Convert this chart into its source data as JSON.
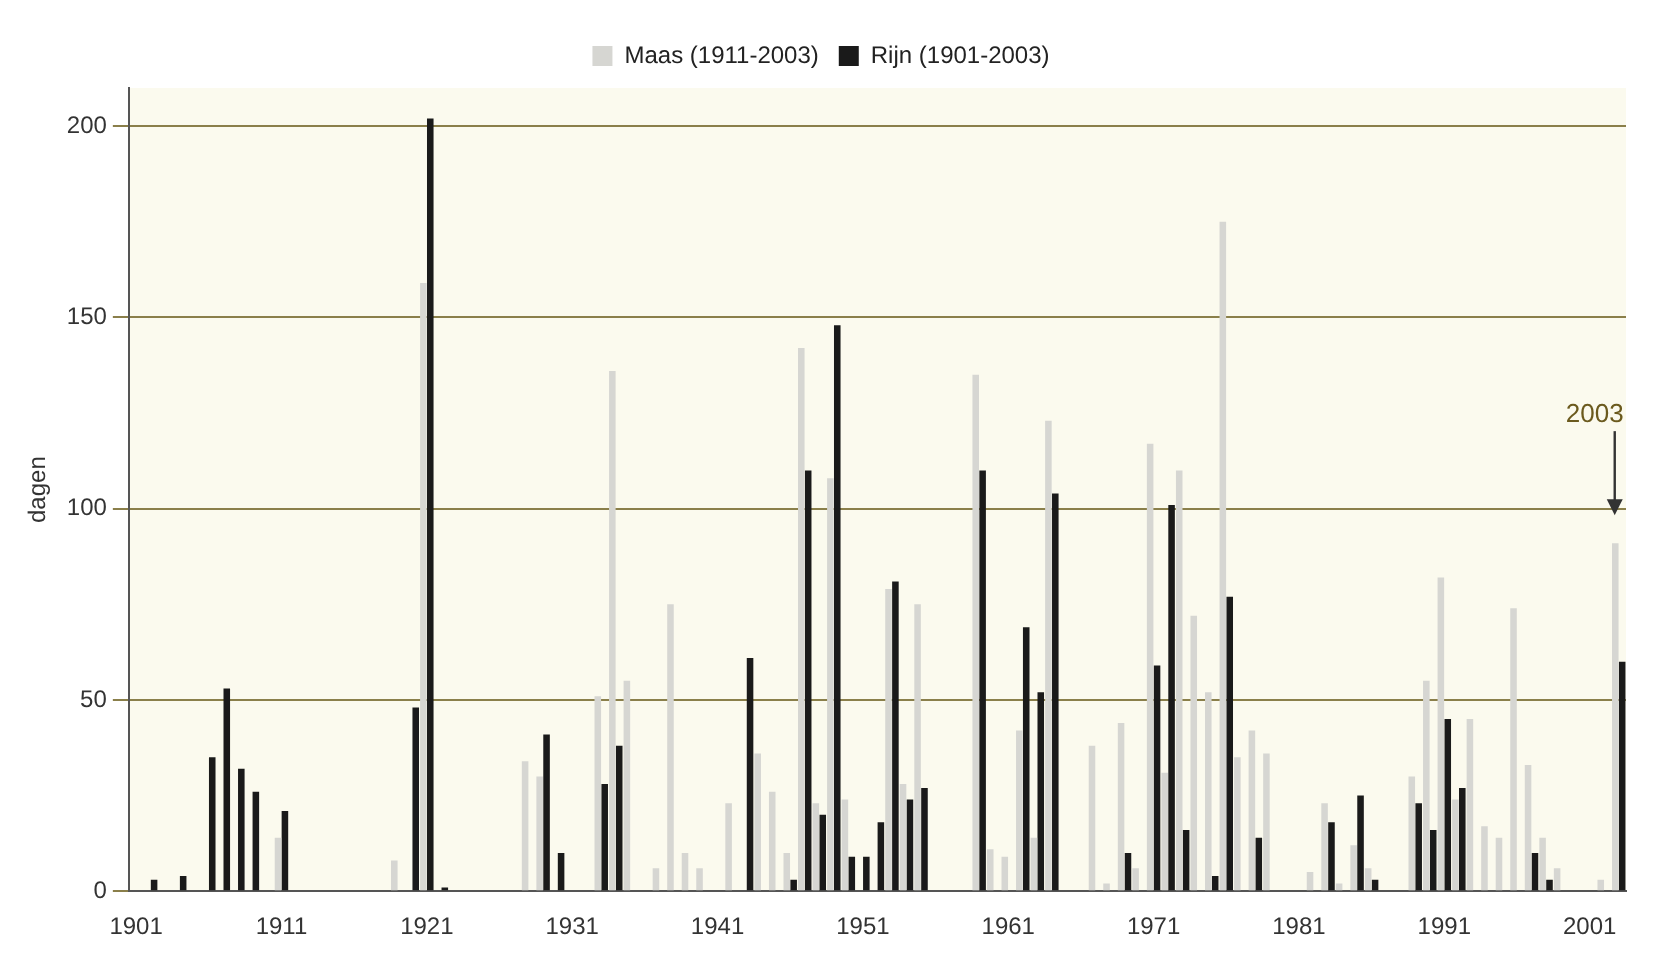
{
  "chart_data": {
    "type": "bar",
    "ylabel": "dagen",
    "categories": [
      "1901",
      null,
      null,
      null,
      null,
      null,
      null,
      null,
      null,
      null,
      "1911",
      null,
      null,
      null,
      null,
      null,
      null,
      null,
      null,
      null,
      "1921",
      null,
      null,
      null,
      null,
      null,
      null,
      null,
      null,
      null,
      "1931",
      null,
      null,
      null,
      null,
      null,
      null,
      null,
      null,
      null,
      "1941",
      null,
      null,
      null,
      null,
      null,
      null,
      null,
      null,
      null,
      "1951",
      null,
      null,
      null,
      null,
      null,
      null,
      null,
      null,
      null,
      "1961",
      null,
      null,
      null,
      null,
      null,
      null,
      null,
      null,
      null,
      "1971",
      null,
      null,
      null,
      null,
      null,
      null,
      null,
      null,
      null,
      "1981",
      null,
      null,
      null,
      null,
      null,
      null,
      null,
      null,
      null,
      "1991",
      null,
      null,
      null,
      null,
      null,
      null,
      null,
      null,
      null,
      "2001",
      null,
      null
    ],
    "series": [
      {
        "name": "Maas (1911-2003)",
        "color": "#d6d6d2",
        "values": [
          null,
          null,
          null,
          null,
          null,
          null,
          null,
          null,
          null,
          null,
          14,
          0,
          0,
          0,
          0,
          0,
          0,
          0,
          8,
          0,
          159,
          0,
          0,
          0,
          0,
          0,
          0,
          34,
          30,
          0,
          0,
          0,
          51,
          136,
          55,
          null,
          6,
          75,
          10,
          6,
          null,
          23,
          0,
          36,
          26,
          10,
          142,
          23,
          108,
          24,
          0,
          0,
          79,
          28,
          75,
          0,
          0,
          0,
          135,
          11,
          9,
          42,
          14,
          123,
          0,
          0,
          38,
          2,
          44,
          6,
          117,
          31,
          110,
          72,
          52,
          175,
          35,
          42,
          36,
          0,
          0,
          5,
          23,
          2,
          12,
          6,
          0,
          0,
          30,
          55,
          82,
          24,
          45,
          17,
          14,
          74,
          33,
          14,
          6,
          0,
          0,
          3,
          91
        ]
      },
      {
        "name": "Rijn (1901-2003)",
        "color": "#1a1a1a",
        "values": [
          0,
          3,
          0,
          4,
          0,
          35,
          53,
          32,
          26,
          0,
          21,
          0,
          0,
          0,
          0,
          0,
          0,
          0,
          0,
          48,
          202,
          1,
          0,
          0,
          0,
          0,
          0,
          0,
          41,
          10,
          0,
          0,
          28,
          38,
          0,
          0,
          0,
          0,
          0,
          0,
          0,
          0,
          61,
          0,
          0,
          3,
          110,
          20,
          148,
          9,
          9,
          18,
          81,
          24,
          27,
          0,
          0,
          0,
          110,
          0,
          0,
          69,
          52,
          104,
          0,
          0,
          0,
          0,
          10,
          0,
          59,
          101,
          16,
          0,
          4,
          77,
          0,
          14,
          0,
          0,
          0,
          0,
          18,
          0,
          25,
          3,
          0,
          0,
          23,
          16,
          45,
          27,
          0,
          0,
          0,
          0,
          10,
          3,
          0,
          0,
          0,
          0,
          60
        ]
      }
    ],
    "ylim": [
      0,
      210
    ],
    "yticks": [
      0,
      50,
      100,
      150,
      200
    ],
    "grid": "y",
    "legend": "top",
    "annotations": [
      "2003"
    ]
  }
}
